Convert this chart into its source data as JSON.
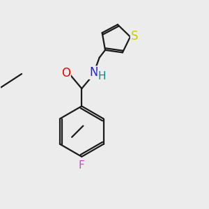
{
  "background_color": "#ececec",
  "bond_color": "#1a1a1a",
  "bond_width": 1.6,
  "atom_colors": {
    "O": "#ee0000",
    "N": "#2222cc",
    "H": "#009090",
    "S": "#cccc00",
    "F": "#cc44cc"
  },
  "font_size": 10.5,
  "xlim": [
    0,
    10
  ],
  "ylim": [
    0,
    10
  ]
}
